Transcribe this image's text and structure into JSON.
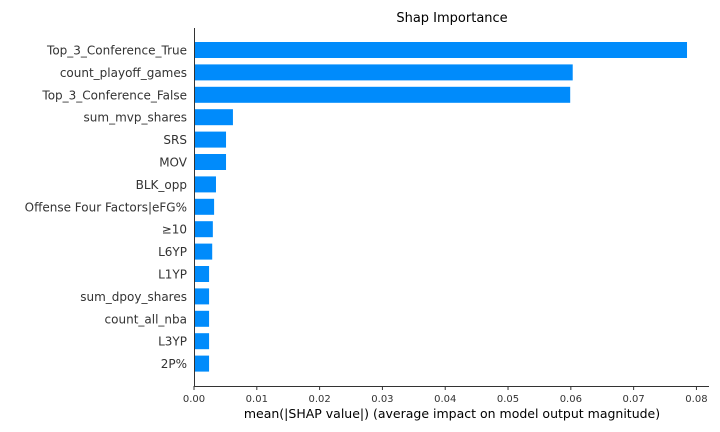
{
  "chart_data": {
    "type": "bar",
    "orientation": "horizontal",
    "title": "Shap Importance",
    "xlabel": "mean(|SHAP value|) (average impact on model output magnitude)",
    "ylabel": "",
    "xlim": [
      0,
      0.082
    ],
    "xticks": [
      0.0,
      0.01,
      0.02,
      0.03,
      0.04,
      0.05,
      0.06,
      0.07,
      0.08
    ],
    "xtick_labels": [
      "0.00",
      "0.01",
      "0.02",
      "0.03",
      "0.04",
      "0.05",
      "0.06",
      "0.07",
      "0.08"
    ],
    "grid": false,
    "bar_color": "#008bfb",
    "categories": [
      "Top_3_Conference_True",
      "count_playoff_games",
      "Top_3_Conference_False",
      "sum_mvp_shares",
      "SRS",
      "MOV",
      "BLK_opp",
      "Offense Four Factors|eFG%",
      "≥10",
      "L6YP",
      "L1YP",
      "sum_dpoy_shares",
      "count_all_nba",
      "L3YP",
      "2P%"
    ],
    "values": [
      0.0785,
      0.0603,
      0.0599,
      0.0062,
      0.0051,
      0.0051,
      0.0035,
      0.0032,
      0.003,
      0.0029,
      0.0024,
      0.0024,
      0.0024,
      0.0024,
      0.0024
    ]
  }
}
